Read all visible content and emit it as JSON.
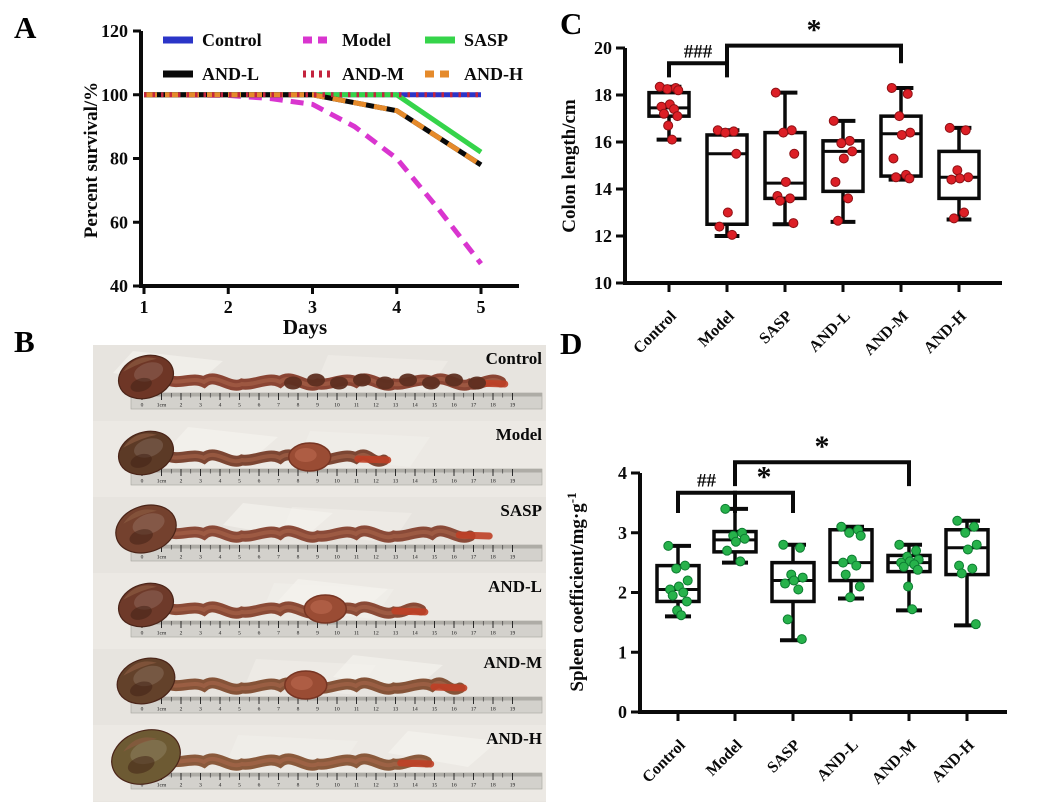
{
  "panels": {
    "a": "A",
    "b": "B",
    "c": "C",
    "d": "D"
  },
  "colors": {
    "control": "#2b35c8",
    "model": "#d935cf",
    "sasp": "#35d44a",
    "and_l": "#0a0a0a",
    "and_m": "#c4243e",
    "and_h": "#e58a2b",
    "dot_red": "#dc1f26",
    "dot_red_edge": "#8e1014",
    "dot_green": "#27b24b",
    "dot_green_edge": "#0d7c31",
    "axis": "#0a0a0a"
  },
  "chart_data": [
    {
      "id": "survival",
      "type": "line",
      "title": "",
      "xlabel": "Days",
      "ylabel": "Percent survival/%",
      "xlim": [
        1,
        5.45
      ],
      "ylim": [
        40,
        120
      ],
      "xticks": [
        1,
        2,
        3,
        4,
        5
      ],
      "yticks": [
        40,
        60,
        80,
        100,
        120
      ],
      "grid": false,
      "legend_position": "top-inside",
      "x": [
        1,
        2,
        2.5,
        3,
        3.5,
        4,
        4.5,
        5
      ],
      "series": [
        {
          "name": "Control",
          "color": "control",
          "style": "solid",
          "values": [
            100,
            100,
            100,
            100,
            100,
            100,
            100,
            100
          ]
        },
        {
          "name": "Model",
          "color": "model",
          "style": "dashed",
          "values": [
            100,
            99.8,
            98.8,
            97,
            90,
            80,
            64,
            47
          ]
        },
        {
          "name": "SASP",
          "color": "sasp",
          "style": "solid",
          "values": [
            100,
            100,
            100,
            100,
            100,
            100,
            91,
            82
          ]
        },
        {
          "name": "AND-L",
          "color": "and_l",
          "style": "solid",
          "values": [
            100,
            100,
            100,
            100,
            97.5,
            95,
            86.5,
            78
          ]
        },
        {
          "name": "AND-M",
          "color": "and_m",
          "style": "dotted",
          "values": [
            100,
            100,
            100,
            100,
            100,
            100,
            100,
            100
          ]
        },
        {
          "name": "AND-H",
          "color": "and_h",
          "style": "dashed",
          "values": [
            100,
            100,
            100,
            100,
            97.5,
            95,
            86.5,
            78
          ]
        }
      ]
    },
    {
      "id": "colon_length",
      "type": "box",
      "ylabel": "Colon length/cm",
      "ylim": [
        10,
        20
      ],
      "yticks": [
        10,
        12,
        14,
        16,
        18,
        20
      ],
      "categories": [
        "Control",
        "Model",
        "SASP",
        "AND-L",
        "AND-M",
        "AND-H"
      ],
      "dot_color": "dot_red",
      "dot_edge": "dot_red_edge",
      "boxes": [
        {
          "whislo": 16.1,
          "q1": 17.1,
          "med": 17.45,
          "q3": 18.1,
          "whishi": 18.35,
          "points": [
            18.35,
            18.3,
            18.25,
            18.2,
            17.6,
            17.5,
            17.4,
            17.2,
            17.1,
            16.7,
            16.1
          ]
        },
        {
          "whislo": 12.0,
          "q1": 12.5,
          "med": 15.5,
          "q3": 16.3,
          "whishi": 16.5,
          "points": [
            16.5,
            16.45,
            16.4,
            15.5,
            13.0,
            12.4,
            12.05
          ]
        },
        {
          "whislo": 12.5,
          "q1": 13.6,
          "med": 14.25,
          "q3": 16.4,
          "whishi": 18.1,
          "points": [
            18.1,
            16.5,
            16.4,
            15.5,
            14.3,
            13.7,
            13.6,
            13.5,
            12.55
          ]
        },
        {
          "whislo": 12.6,
          "q1": 13.9,
          "med": 15.6,
          "q3": 16.05,
          "whishi": 16.9,
          "points": [
            16.9,
            16.05,
            15.95,
            15.6,
            15.3,
            14.3,
            13.6,
            12.65
          ]
        },
        {
          "whislo": 14.4,
          "q1": 14.55,
          "med": 16.35,
          "q3": 17.1,
          "whishi": 18.3,
          "points": [
            18.3,
            18.05,
            17.1,
            16.4,
            16.3,
            15.3,
            14.6,
            14.5,
            14.45
          ]
        },
        {
          "whislo": 12.7,
          "q1": 13.6,
          "med": 14.5,
          "q3": 15.6,
          "whishi": 16.6,
          "points": [
            16.6,
            16.5,
            14.8,
            14.5,
            14.45,
            14.4,
            13.0,
            12.75
          ]
        }
      ],
      "significance": [
        {
          "label": "###",
          "from": 0,
          "to": 1,
          "bar": 19.35,
          "drop": 0.6
        },
        {
          "label": "*",
          "from": 1,
          "to": 4,
          "bar": 20.1,
          "drop": 0.75
        }
      ]
    },
    {
      "id": "spleen_coefficient",
      "type": "box",
      "ylabel": "Spleen coefficient/mg·g⁻¹",
      "ylim": [
        0,
        4
      ],
      "yticks": [
        0,
        1,
        2,
        3,
        4
      ],
      "categories": [
        "Control",
        "Model",
        "SASP",
        "AND-L",
        "AND-M",
        "AND-H"
      ],
      "dot_color": "dot_green",
      "dot_edge": "dot_green_edge",
      "boxes": [
        {
          "whislo": 1.6,
          "q1": 1.85,
          "med": 2.05,
          "q3": 2.45,
          "whishi": 2.78,
          "points": [
            2.78,
            2.45,
            2.4,
            2.2,
            2.1,
            2.05,
            2.0,
            1.95,
            1.85,
            1.7,
            1.62
          ]
        },
        {
          "whislo": 2.5,
          "q1": 2.68,
          "med": 2.88,
          "q3": 3.02,
          "whishi": 3.4,
          "points": [
            3.4,
            3.0,
            2.95,
            2.9,
            2.85,
            2.7,
            2.52
          ]
        },
        {
          "whislo": 1.2,
          "q1": 1.85,
          "med": 2.2,
          "q3": 2.5,
          "whishi": 2.8,
          "points": [
            2.8,
            2.75,
            2.3,
            2.25,
            2.2,
            2.15,
            2.05,
            1.55,
            1.22
          ]
        },
        {
          "whislo": 1.9,
          "q1": 2.2,
          "med": 2.5,
          "q3": 3.05,
          "whishi": 3.1,
          "points": [
            3.1,
            3.05,
            3.0,
            2.95,
            2.55,
            2.5,
            2.45,
            2.3,
            2.1,
            1.92
          ]
        },
        {
          "whislo": 1.7,
          "q1": 2.35,
          "med": 2.5,
          "q3": 2.62,
          "whishi": 2.8,
          "points": [
            2.8,
            2.7,
            2.6,
            2.55,
            2.52,
            2.5,
            2.47,
            2.43,
            2.38,
            2.1,
            1.72
          ]
        },
        {
          "whislo": 1.45,
          "q1": 2.3,
          "med": 2.75,
          "q3": 3.05,
          "whishi": 3.2,
          "points": [
            3.2,
            3.1,
            3.0,
            2.8,
            2.72,
            2.45,
            2.4,
            2.32,
            1.47
          ]
        }
      ],
      "significance": [
        {
          "label": "##",
          "from": 0,
          "to": 1,
          "bar": 3.67,
          "drop": 0.34
        },
        {
          "label": "*",
          "from": 1,
          "to": 2,
          "bar": 3.67,
          "drop": 0.34
        },
        {
          "label": "*",
          "from": 1,
          "to": 4,
          "bar": 4.18,
          "drop": 0.4
        }
      ]
    }
  ],
  "photo_panel": {
    "ruler": {
      "first": "0",
      "unit_label": "1cm",
      "max_cm": 19
    },
    "rows": [
      {
        "label": "Control",
        "end_cm": 18.4,
        "pellets": true,
        "tube": "#8a4534",
        "cecum": "#6e3626",
        "cecum_scale": 1.0
      },
      {
        "label": "Model",
        "end_cm": 12.4,
        "bulge_cm": 8.6,
        "tube": "#7c4633",
        "cecum": "#5c3a26",
        "cecum_scale": 1.0
      },
      {
        "label": "SASP",
        "end_cm": 17.6,
        "tube": "#8a4a38",
        "cecum": "#74412e",
        "cecum_scale": 1.1
      },
      {
        "label": "AND-L",
        "end_cm": 14.3,
        "bulge_cm": 9.4,
        "tube": "#8a4a36",
        "cecum": "#6e3a2a",
        "cecum_scale": 1.0
      },
      {
        "label": "AND-M",
        "end_cm": 16.3,
        "bulge_cm": 8.4,
        "tube": "#855338",
        "cecum": "#63412a",
        "cecum_scale": 1.05
      },
      {
        "label": "AND-H",
        "end_cm": 14.6,
        "tube": "#8a5a3c",
        "cecum": "#6d5a33",
        "cecum_scale": 1.25
      }
    ]
  }
}
